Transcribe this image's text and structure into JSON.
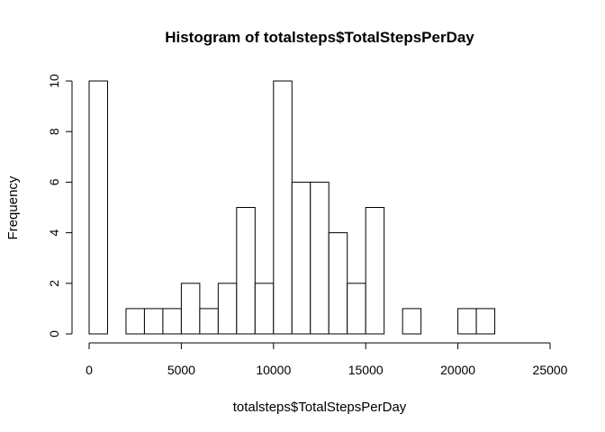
{
  "chart_data": {
    "type": "bar",
    "title": "Histogram of totalsteps$TotalStepsPerDay",
    "xlabel": "totalsteps$TotalStepsPerDay",
    "ylabel": "Frequency",
    "bin_width": 1000,
    "bin_edges_start": 0,
    "x": [
      500,
      1500,
      2500,
      3500,
      4500,
      5500,
      6500,
      7500,
      8500,
      9500,
      10500,
      11500,
      12500,
      13500,
      14500,
      15500,
      16500,
      17500,
      18500,
      19500,
      20500,
      21500,
      22500,
      23500,
      24500
    ],
    "values": [
      10,
      0,
      1,
      1,
      1,
      2,
      1,
      2,
      5,
      2,
      10,
      6,
      6,
      4,
      2,
      5,
      0,
      1,
      0,
      0,
      1,
      1,
      0,
      0,
      0
    ],
    "xlim": [
      0,
      25000
    ],
    "ylim": [
      0,
      10
    ],
    "xticks": [
      "0",
      "5000",
      "10000",
      "15000",
      "20000",
      "25000"
    ],
    "xtick_values": [
      0,
      5000,
      10000,
      15000,
      20000,
      25000
    ],
    "yticks": [
      "0",
      "2",
      "4",
      "6",
      "8",
      "10"
    ],
    "ytick_values": [
      0,
      2,
      4,
      6,
      8,
      10
    ],
    "grid": false,
    "legend": "none",
    "colors": {
      "bar_fill": "#ffffff",
      "bar_stroke": "#000000"
    }
  }
}
